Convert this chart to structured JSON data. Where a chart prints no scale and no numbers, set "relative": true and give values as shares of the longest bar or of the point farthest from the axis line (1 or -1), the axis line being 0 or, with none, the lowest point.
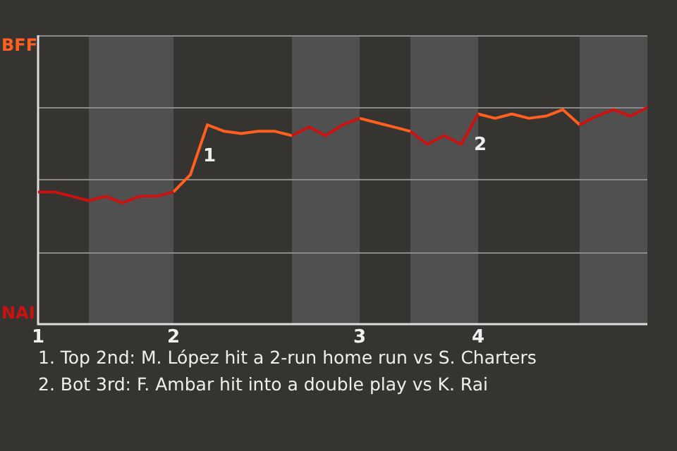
{
  "chart_data": {
    "type": "line",
    "categories": [
      "1",
      null,
      null,
      null,
      null,
      null,
      null,
      null,
      "2",
      null,
      null,
      null,
      null,
      null,
      null,
      null,
      null,
      null,
      null,
      "3",
      null,
      null,
      null,
      null,
      null,
      null,
      "4",
      null,
      null,
      null,
      null,
      null,
      null,
      null,
      null,
      null,
      null
    ],
    "relative": true,
    "series": [
      {
        "color": "#cc1111",
        "values": [
          0.61,
          0.61,
          0.59,
          0.57,
          0.59,
          0.56,
          0.59,
          0.59,
          0.61,
          null,
          null,
          null,
          null,
          null,
          null,
          0.87,
          0.91,
          0.87,
          0.92,
          0.95,
          null,
          null,
          0.89,
          0.83,
          0.87,
          0.83,
          0.97,
          null,
          null,
          null,
          null,
          null,
          0.92,
          0.96,
          0.99,
          0.96,
          1
        ]
      },
      {
        "color": "#ff5f1f",
        "values": [
          null,
          null,
          null,
          null,
          null,
          null,
          null,
          null,
          0.61,
          0.69,
          0.92,
          0.89,
          0.88,
          0.89,
          0.89,
          0.87,
          null,
          null,
          null,
          0.95,
          0.93,
          0.91,
          0.89,
          null,
          null,
          null,
          0.97,
          0.95,
          0.97,
          0.95,
          0.96,
          0.99,
          0.92,
          null,
          null,
          null,
          null
        ]
      }
    ],
    "annotations": [
      "BFF",
      "NAI",
      {
        "text": "1",
        "y": 0.92
      },
      {
        "text": "2",
        "x": "4",
        "y": 0.97
      },
      "1. Top 2nd: M. López hit a 2-run home run vs S. Charters",
      "2. Bot 3rd: F. Ambar hit into a double play vs K. Rai"
    ],
    "ref_lines": [
      {
        "axis": "y",
        "value": 0.33,
        "color": "#8a8a8a"
      },
      {
        "axis": "y",
        "value": 0.67,
        "color": "#8a8a8a"
      },
      {
        "axis": "y",
        "value": 1,
        "color": "#8a8a8a"
      }
    ],
    "legend": false,
    "marker": "none",
    "line_style": "solid"
  }
}
